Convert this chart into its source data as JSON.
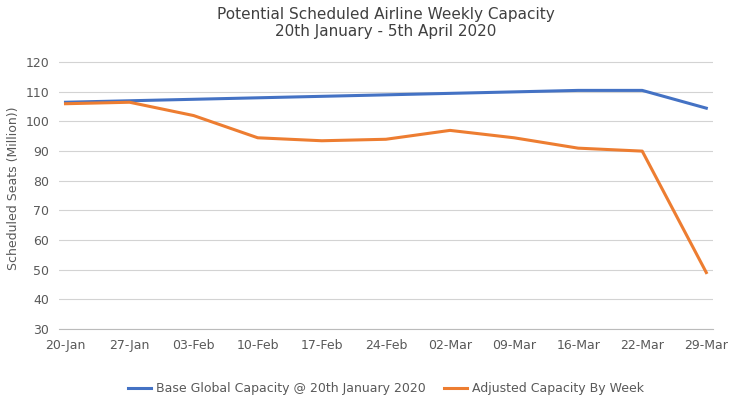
{
  "title_line1": "Potential Scheduled Airline Weekly Capacity",
  "title_line2": "20th January - 5th April 2020",
  "ylabel": "Scheduled Seats (Million))",
  "x_labels": [
    "20-Jan",
    "27-Jan",
    "03-Feb",
    "10-Feb",
    "17-Feb",
    "24-Feb",
    "02-Mar",
    "09-Mar",
    "16-Mar",
    "22-Mar",
    "29-Mar"
  ],
  "base_capacity": [
    106.5,
    107.0,
    107.5,
    108.0,
    108.5,
    109.0,
    109.5,
    110.0,
    110.5,
    110.5,
    104.5
  ],
  "adjusted_capacity": [
    106.0,
    106.5,
    102.0,
    94.5,
    93.5,
    94.0,
    97.0,
    94.5,
    91.0,
    90.0,
    49.0
  ],
  "base_color": "#4472C4",
  "adjusted_color": "#ED7D31",
  "ylim_min": 30,
  "ylim_max": 125,
  "yticks": [
    30,
    40,
    50,
    60,
    70,
    80,
    90,
    100,
    110,
    120
  ],
  "legend_base": "Base Global Capacity @ 20th January 2020",
  "legend_adjusted": "Adjusted Capacity By Week",
  "background_color": "#FFFFFF",
  "grid_color": "#D3D3D3",
  "title_color": "#404040",
  "axis_label_color": "#595959",
  "tick_color": "#595959",
  "line_width": 2.2,
  "title_fontsize": 11,
  "tick_fontsize": 9,
  "ylabel_fontsize": 9,
  "legend_fontsize": 9
}
